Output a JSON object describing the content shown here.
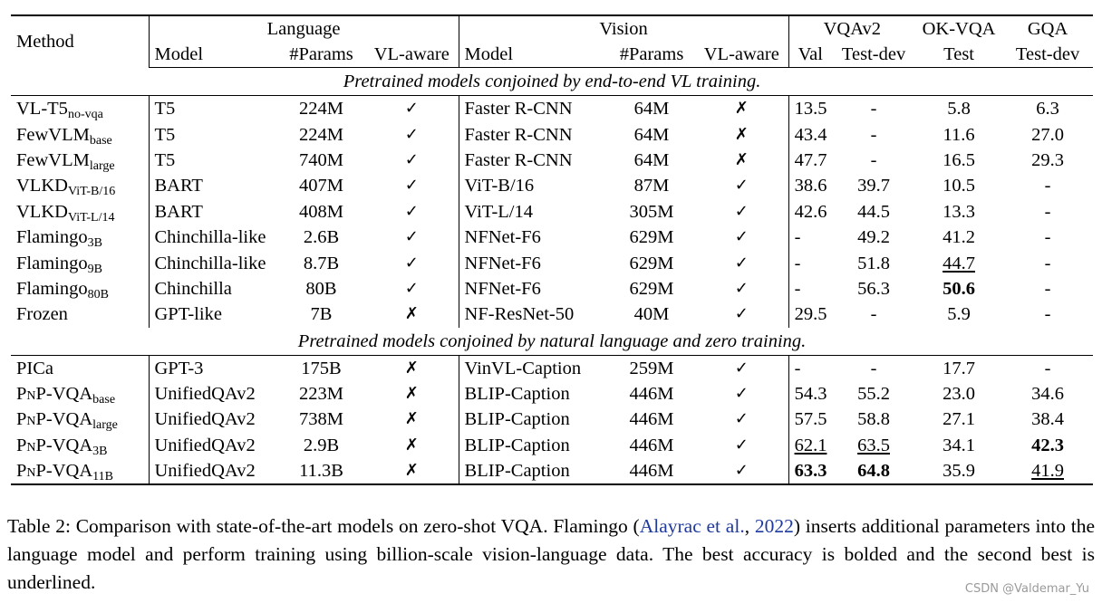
{
  "header": {
    "method": "Method",
    "language": "Language",
    "vision": "Vision",
    "vqav2": "VQAv2",
    "okvqa": "OK-VQA",
    "gqa": "GQA",
    "model": "Model",
    "params": "#Params",
    "vlaware": "VL-aware",
    "val": "Val",
    "testdev": "Test-dev",
    "test": "Test"
  },
  "sections": [
    {
      "title": "Pretrained models conjoined by end-to-end VL training.",
      "rows": [
        {
          "name": "VL-T5",
          "sub": "no-vqa",
          "lm": "T5",
          "lp": "224M",
          "la": "✓",
          "vm": "Faster R-CNN",
          "vp": "64M",
          "va": "✗",
          "val": "13.5",
          "td": "-",
          "ok": "5.8",
          "gqa": "6.3"
        },
        {
          "name": "FewVLM",
          "sub": "base",
          "lm": "T5",
          "lp": "224M",
          "la": "✓",
          "vm": "Faster R-CNN",
          "vp": "64M",
          "va": "✗",
          "val": "43.4",
          "td": "-",
          "ok": "11.6",
          "gqa": "27.0"
        },
        {
          "name": "FewVLM",
          "sub": "large",
          "lm": "T5",
          "lp": "740M",
          "la": "✓",
          "vm": "Faster R-CNN",
          "vp": "64M",
          "va": "✗",
          "val": "47.7",
          "td": "-",
          "ok": "16.5",
          "gqa": "29.3"
        },
        {
          "name": "VLKD",
          "sub": "ViT-B/16",
          "lm": "BART",
          "lp": "407M",
          "la": "✓",
          "vm": "ViT-B/16",
          "vp": "87M",
          "va": "✓",
          "val": "38.6",
          "td": "39.7",
          "ok": "10.5",
          "gqa": "-"
        },
        {
          "name": "VLKD",
          "sub": "ViT-L/14",
          "lm": "BART",
          "lp": "408M",
          "la": "✓",
          "vm": "ViT-L/14",
          "vp": "305M",
          "va": "✓",
          "val": "42.6",
          "td": "44.5",
          "ok": "13.3",
          "gqa": "-"
        },
        {
          "name": "Flamingo",
          "sub": "3B",
          "lm": "Chinchilla-like",
          "lp": "2.6B",
          "la": "✓",
          "vm": "NFNet-F6",
          "vp": "629M",
          "va": "✓",
          "val": "-",
          "td": "49.2",
          "ok": "41.2",
          "gqa": "-"
        },
        {
          "name": "Flamingo",
          "sub": "9B",
          "lm": "Chinchilla-like",
          "lp": "8.7B",
          "la": "✓",
          "vm": "NFNet-F6",
          "vp": "629M",
          "va": "✓",
          "val": "-",
          "td": "51.8",
          "ok": "44.7",
          "gqa": "-",
          "ok_u": true
        },
        {
          "name": "Flamingo",
          "sub": "80B",
          "lm": "Chinchilla",
          "lp": "80B",
          "la": "✓",
          "vm": "NFNet-F6",
          "vp": "629M",
          "va": "✓",
          "val": "-",
          "td": "56.3",
          "ok": "50.6",
          "gqa": "-",
          "ok_b": true
        },
        {
          "name": "Frozen",
          "sub": "",
          "lm": "GPT-like",
          "lp": "7B",
          "la": "✗",
          "vm": "NF-ResNet-50",
          "vp": "40M",
          "va": "✓",
          "val": "29.5",
          "td": "-",
          "ok": "5.9",
          "gqa": "-"
        }
      ]
    },
    {
      "title": "Pretrained models conjoined by natural language and zero training.",
      "rows": [
        {
          "name": "PICa",
          "sub": "",
          "lm": "GPT-3",
          "lp": "175B",
          "la": "✗",
          "vm": "VinVL-Caption",
          "vp": "259M",
          "va": "✓",
          "val": "-",
          "td": "-",
          "ok": "17.7",
          "gqa": "-"
        },
        {
          "name": "PnP-VQA",
          "sub": "base",
          "sc": true,
          "lm": "UnifiedQAv2",
          "lp": "223M",
          "la": "✗",
          "vm": "BLIP-Caption",
          "vp": "446M",
          "va": "✓",
          "val": "54.3",
          "td": "55.2",
          "ok": "23.0",
          "gqa": "34.6"
        },
        {
          "name": "PnP-VQA",
          "sub": "large",
          "sc": true,
          "lm": "UnifiedQAv2",
          "lp": "738M",
          "la": "✗",
          "vm": "BLIP-Caption",
          "vp": "446M",
          "va": "✓",
          "val": "57.5",
          "td": "58.8",
          "ok": "27.1",
          "gqa": "38.4"
        },
        {
          "name": "PnP-VQA",
          "sub": "3B",
          "sc": true,
          "lm": "UnifiedQAv2",
          "lp": "2.9B",
          "la": "✗",
          "vm": "BLIP-Caption",
          "vp": "446M",
          "va": "✓",
          "val": "62.1",
          "td": "63.5",
          "ok": "34.1",
          "gqa": "42.3",
          "val_u": true,
          "td_u": true,
          "gqa_b": true
        },
        {
          "name": "PnP-VQA",
          "sub": "11B",
          "sc": true,
          "lm": "UnifiedQAv2",
          "lp": "11.3B",
          "la": "✗",
          "vm": "BLIP-Caption",
          "vp": "446M",
          "va": "✓",
          "val": "63.3",
          "td": "64.8",
          "ok": "35.9",
          "gqa": "41.9",
          "val_b": true,
          "td_b": true,
          "gqa_u": true
        }
      ]
    }
  ],
  "caption": {
    "prefix": "Table 2:  Comparison with state-of-the-art models on zero-shot VQA. Flamingo (",
    "cite_author": "Alayrac et al.",
    "cite_sep": ", ",
    "cite_year": "2022",
    "suffix": ") inserts additional parameters into the language model and perform training using billion-scale vision-language data. The best accuracy is bolded and the second best is underlined."
  },
  "watermark": "CSDN @Valdemar_Yu"
}
